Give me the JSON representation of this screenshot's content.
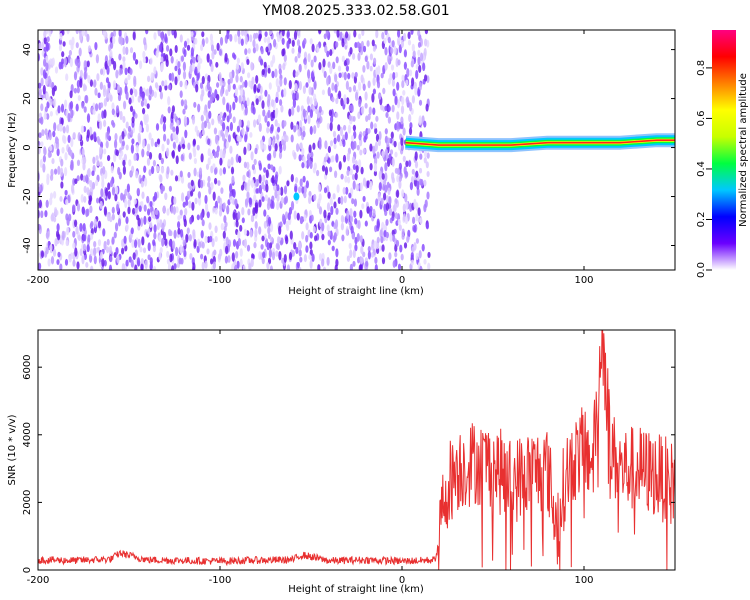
{
  "title": "YM08.2025.333.02.58.G01",
  "colors": {
    "noise": "#6a1fe8",
    "trace": "#e83030",
    "colorbar": [
      "#ffffff",
      "#6a00ff",
      "#0000ff",
      "#00c8ff",
      "#00ff40",
      "#c8ff00",
      "#ffff00",
      "#ff8000",
      "#ff0000",
      "#ff0080"
    ]
  },
  "chart_data": [
    {
      "type": "heatmap",
      "xlabel": "Height of straight line (km)",
      "ylabel": "Frequency (Hz)",
      "xlim": [
        -200,
        150
      ],
      "ylim": [
        -50,
        48
      ],
      "xticks": [
        -200,
        -100,
        0,
        100
      ],
      "yticks": [
        40,
        20,
        0,
        -20,
        -40
      ],
      "colorbar": {
        "label": "Normalized spectral amplitude",
        "range": [
          0,
          0.95
        ],
        "ticks": [
          "0.0",
          "0.2",
          "0.4",
          "0.6",
          "0.8"
        ],
        "tick_values": [
          0.0,
          0.2,
          0.4,
          0.6,
          0.8
        ]
      },
      "noise_region_x": [
        -200,
        15
      ],
      "noise_amplitude_range": [
        0.0,
        0.15
      ],
      "signal_line": {
        "x": [
          2,
          20,
          40,
          60,
          80,
          100,
          120,
          140,
          150
        ],
        "frequency": [
          2,
          1,
          1,
          1,
          2,
          2,
          2,
          3,
          3
        ],
        "amplitude": 0.95
      },
      "spot": {
        "x": -58,
        "frequency": -20,
        "amplitude": 0.3
      }
    },
    {
      "type": "line",
      "xlabel": "Height of straight line (km)",
      "ylabel": "SNR (10 * v/v)",
      "xlim": [
        -200,
        150
      ],
      "ylim": [
        0,
        7100
      ],
      "xticks": [
        -200,
        -100,
        0,
        100
      ],
      "yticks": [
        0,
        2000,
        4000,
        6000
      ],
      "series": [
        {
          "x": [
            -200,
            -180,
            -160,
            -155,
            -140,
            -120,
            -100,
            -80,
            -60,
            -55,
            -40,
            -20,
            0,
            10,
            18,
            20,
            22,
            25,
            30,
            40,
            50,
            60,
            70,
            80,
            85,
            90,
            95,
            100,
            105,
            110,
            115,
            120,
            130,
            140,
            150
          ],
          "values": [
            300,
            280,
            320,
            500,
            300,
            280,
            260,
            290,
            300,
            450,
            270,
            300,
            260,
            280,
            300,
            700,
            1700,
            2500,
            3000,
            3200,
            3100,
            2600,
            2900,
            3000,
            1200,
            2800,
            3300,
            3600,
            3200,
            7000,
            3500,
            3000,
            3000,
            2800,
            2500
          ]
        }
      ]
    }
  ]
}
